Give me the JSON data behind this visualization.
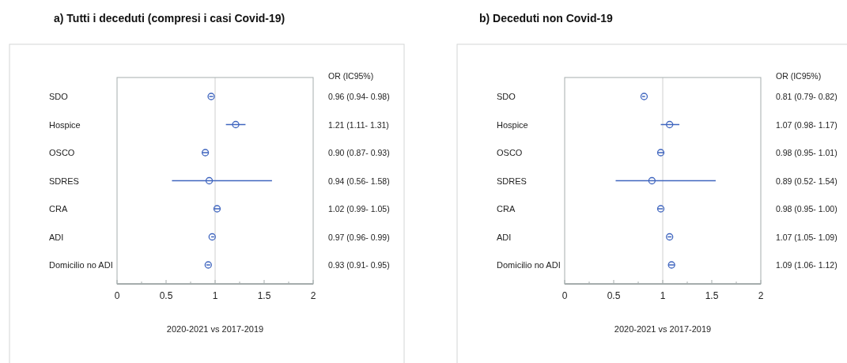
{
  "chart_data": [
    {
      "type": "scatter",
      "orientation": "horizontal",
      "title": "a) Tutti i deceduti (compresi i casi Covid-19)",
      "xlabel": "2020-2021 vs 2017-2019",
      "annotations": [
        "OR (IC95%)"
      ],
      "categories": [
        "SDO",
        "Hospice",
        "OSCO",
        "SDRES",
        "CRA",
        "ADI",
        "Domicilio no ADI"
      ],
      "series": [
        {
          "color": "#4066bf",
          "values": [
            0.96,
            1.21,
            0.9,
            0.94,
            1.02,
            0.97,
            0.93
          ],
          "errors": [
            [
              0.94,
              0.98
            ],
            [
              1.11,
              1.31
            ],
            [
              0.87,
              0.93
            ],
            [
              0.56,
              1.58
            ],
            [
              0.99,
              1.05
            ],
            [
              0.96,
              0.99
            ],
            [
              0.91,
              0.95
            ]
          ],
          "value_labels": [
            "0.96 (0.94- 0.98)",
            "1.21 (1.11- 1.31)",
            "0.90 (0.87- 0.93)",
            "0.94 (0.56- 1.58)",
            "1.02 (0.99- 1.05)",
            "0.97 (0.96- 0.99)",
            "0.93 (0.91- 0.95)"
          ]
        }
      ],
      "xlim": [
        0,
        2
      ],
      "xticks": [
        0,
        {
          "value": 0.25,
          "label": null
        },
        0.5,
        {
          "value": 0.75,
          "label": null
        },
        1,
        {
          "value": 1.25,
          "label": null
        },
        1.5,
        {
          "value": 1.75,
          "label": null
        },
        2
      ],
      "ref_lines": [
        {
          "axis": "x",
          "value": 1,
          "color": "#cfcfcf"
        }
      ],
      "marker": "circle"
    },
    {
      "type": "scatter",
      "orientation": "horizontal",
      "title": "b) Deceduti non Covid-19",
      "xlabel": "2020-2021 vs 2017-2019",
      "annotations": [
        "OR (IC95%)"
      ],
      "categories": [
        "SDO",
        "Hospice",
        "OSCO",
        "SDRES",
        "CRA",
        "ADI",
        "Domicilio no ADI"
      ],
      "series": [
        {
          "color": "#4066bf",
          "values": [
            0.81,
            1.07,
            0.98,
            0.89,
            0.98,
            1.07,
            1.09
          ],
          "errors": [
            [
              0.79,
              0.82
            ],
            [
              0.98,
              1.17
            ],
            [
              0.95,
              1.01
            ],
            [
              0.52,
              1.54
            ],
            [
              0.95,
              1.0
            ],
            [
              1.05,
              1.09
            ],
            [
              1.06,
              1.12
            ]
          ],
          "value_labels": [
            "0.81 (0.79- 0.82)",
            "1.07 (0.98- 1.17)",
            "0.98 (0.95- 1.01)",
            "0.89 (0.52- 1.54)",
            "0.98 (0.95- 1.00)",
            "1.07 (1.05- 1.09)",
            "1.09 (1.06- 1.12)"
          ]
        }
      ],
      "xlim": [
        0,
        2
      ],
      "xticks": [
        0,
        {
          "value": 0.25,
          "label": null
        },
        0.5,
        {
          "value": 0.75,
          "label": null
        },
        1,
        {
          "value": 1.25,
          "label": null
        },
        1.5,
        {
          "value": 1.75,
          "label": null
        },
        2
      ],
      "ref_lines": [
        {
          "axis": "x",
          "value": 1,
          "color": "#cfcfcf"
        }
      ],
      "marker": "circle"
    }
  ]
}
